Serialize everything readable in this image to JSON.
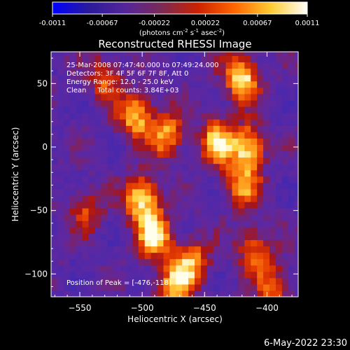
{
  "colorbar": {
    "ticks": [
      "-0.0011",
      "-0.00067",
      "-0.00022",
      "0.00022",
      "0.00067",
      "0.0011"
    ],
    "tick_values": [
      -0.0011,
      -0.00067,
      -0.00022,
      0.00022,
      0.00067,
      0.0011
    ],
    "units_prefix": "(photons cm",
    "units_exp1": "-2",
    "units_mid": " s",
    "units_exp2": "-1",
    "units_mid2": " asec",
    "units_exp3": "-2",
    "units_suffix": ")",
    "colormap_stops": [
      "#0000ff",
      "#2a1a9a",
      "#55269a",
      "#7a2a55",
      "#cc2200",
      "#ff6600",
      "#ffcc33",
      "#ffffff"
    ]
  },
  "chart_data": {
    "type": "heatmap",
    "title": "Reconstructed RHESSI Image",
    "xlabel": "Heliocentric X (arcsec)",
    "ylabel": "Heliocentric Y (arcsec)",
    "xlim": [
      -573,
      -375
    ],
    "ylim": [
      -118,
      75
    ],
    "xticks": [
      -550,
      -500,
      -450,
      -400
    ],
    "yticks": [
      -100,
      -50,
      0,
      50
    ],
    "xtick_labels": [
      "−550",
      "−500",
      "−450",
      "−400"
    ],
    "ytick_labels": [
      "−100",
      "−50",
      "0",
      "50"
    ],
    "annotations": [
      "25-Mar-2008 07:47:40.000 to 07:49:24.000",
      "Detectors: 3F 4F 5F 6F 7F 8F, Att 0",
      "Energy Range: 12.0 - 25.0 keV",
      "Clean     Total counts: 3.84E+03"
    ],
    "peak_label": "Position of Peak = [-476,-118]",
    "peak_position": [
      -476,
      -118
    ],
    "bright_regions": [
      {
        "x": -420,
        "y": 55,
        "intensity": 1.0
      },
      {
        "x": -500,
        "y": -40,
        "intensity": 1.0
      },
      {
        "x": -490,
        "y": -70,
        "intensity": 0.95
      },
      {
        "x": -505,
        "y": 25,
        "intensity": 0.85
      },
      {
        "x": -480,
        "y": 10,
        "intensity": 0.75
      },
      {
        "x": -440,
        "y": 5,
        "intensity": 0.85
      },
      {
        "x": -415,
        "y": 0,
        "intensity": 0.9
      },
      {
        "x": -420,
        "y": -30,
        "intensity": 0.7
      },
      {
        "x": -460,
        "y": -90,
        "intensity": 0.75
      },
      {
        "x": -410,
        "y": -80,
        "intensity": 0.65
      },
      {
        "x": -395,
        "y": -110,
        "intensity": 0.6
      },
      {
        "x": -530,
        "y": 55,
        "intensity": 0.55
      },
      {
        "x": -545,
        "y": -50,
        "intensity": 0.5
      },
      {
        "x": -475,
        "y": -110,
        "intensity": 0.8
      }
    ]
  },
  "footer": {
    "date": "6-May-2022 23:30"
  }
}
